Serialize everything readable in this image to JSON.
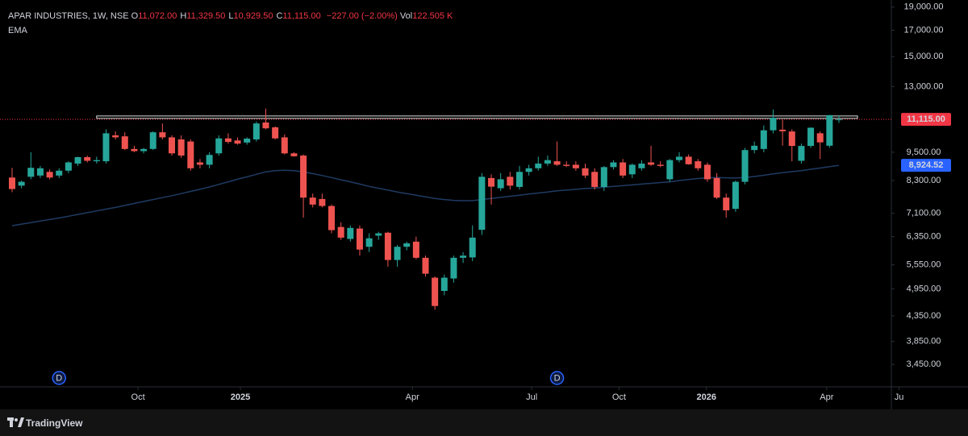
{
  "chart_data": {
    "type": "candlestick",
    "symbol": "APAR INDUSTRIES, 1W, NSE",
    "ohlc_legend": [
      {
        "key": "O",
        "value": "11,072.00"
      },
      {
        "key": "H",
        "value": "11,329.50"
      },
      {
        "key": "L",
        "value": "10,929.50"
      },
      {
        "key": "C",
        "value": "11,115.00"
      }
    ],
    "change": "−227.00 (−2.00%)",
    "volume_key": "Vol",
    "volume": "122.505 K",
    "up_color": "#26a69a",
    "down_color": "#ef5350",
    "log": true,
    "ylim": [
      3100,
      19650
    ],
    "yticks": [
      {
        "value": 19000,
        "label": "19,000.00"
      },
      {
        "value": 17000,
        "label": "17,000.00"
      },
      {
        "value": 15000,
        "label": "15,000.00"
      },
      {
        "value": 13000,
        "label": "13,000.00"
      },
      {
        "value": 9500,
        "label": "9,500.00"
      },
      {
        "value": 8300,
        "label": "8,300.00"
      },
      {
        "value": 7100,
        "label": "7,100.00"
      },
      {
        "value": 6350,
        "label": "6,350.00"
      },
      {
        "value": 5550,
        "label": "5,550.00"
      },
      {
        "value": 4950,
        "label": "4,950.00"
      },
      {
        "value": 4350,
        "label": "4,350.00"
      },
      {
        "value": 3850,
        "label": "3,850.00"
      },
      {
        "value": 3450,
        "label": "3,450.00"
      }
    ],
    "xticks": [
      {
        "value": 13.4,
        "label": "Oct"
      },
      {
        "value": 24.3,
        "label": "2025"
      },
      {
        "value": 42.6,
        "label": "Apr"
      },
      {
        "value": 55.3,
        "label": "Jul"
      },
      {
        "value": 64.6,
        "label": "Oct"
      },
      {
        "value": 73.9,
        "label": "2026"
      },
      {
        "value": 86.7,
        "label": "Apr"
      },
      {
        "value": 94.4,
        "label": "Ju"
      }
    ],
    "ohlc": [
      [
        8420,
        8820,
        7850,
        7970
      ],
      [
        8100,
        8300,
        8000,
        8250
      ],
      [
        8450,
        9500,
        8350,
        8820
      ],
      [
        8500,
        8900,
        8400,
        8800
      ],
      [
        8650,
        8750,
        8350,
        8420
      ],
      [
        8500,
        8800,
        8400,
        8700
      ],
      [
        8700,
        9100,
        8600,
        9050
      ],
      [
        9000,
        9300,
        8900,
        9280
      ],
      [
        9280,
        9350,
        9050,
        9120
      ],
      [
        9100,
        9300,
        9000,
        9150
      ],
      [
        9100,
        10600,
        9000,
        10400
      ],
      [
        10300,
        10500,
        10100,
        10200
      ],
      [
        10250,
        10450,
        9600,
        9650
      ],
      [
        9650,
        9800,
        9500,
        9550
      ],
      [
        9550,
        9700,
        9450,
        9650
      ],
      [
        9650,
        10500,
        9600,
        10450
      ],
      [
        10450,
        10900,
        10100,
        10200
      ],
      [
        10200,
        10300,
        9350,
        9450
      ],
      [
        10100,
        10300,
        9250,
        9350
      ],
      [
        10000,
        10100,
        8700,
        8800
      ],
      [
        9050,
        9200,
        8800,
        8950
      ],
      [
        8950,
        9500,
        8800,
        9380
      ],
      [
        9450,
        10300,
        9350,
        10150
      ],
      [
        10150,
        10400,
        9900,
        9980
      ],
      [
        10050,
        10200,
        9850,
        9900
      ],
      [
        9950,
        10200,
        9850,
        10140
      ],
      [
        10100,
        11000,
        10000,
        10900
      ],
      [
        10950,
        11700,
        10600,
        10650
      ],
      [
        10700,
        10750,
        10100,
        10150
      ],
      [
        10200,
        10350,
        9400,
        9450
      ],
      [
        9450,
        9500,
        9300,
        9320
      ],
      [
        9350,
        9400,
        6950,
        7650
      ],
      [
        7650,
        7800,
        7300,
        7400
      ],
      [
        7600,
        7800,
        7300,
        7350
      ],
      [
        7350,
        7400,
        6450,
        6550
      ],
      [
        6650,
        6800,
        6250,
        6320
      ],
      [
        6280,
        6700,
        6200,
        6620
      ],
      [
        6600,
        6700,
        5800,
        5970
      ],
      [
        6050,
        6450,
        5900,
        6300
      ],
      [
        6380,
        6500,
        6250,
        6450
      ],
      [
        6470,
        6500,
        5500,
        5680
      ],
      [
        5680,
        6100,
        5500,
        6050
      ],
      [
        6050,
        6200,
        5950,
        6150
      ],
      [
        6200,
        6350,
        5700,
        5740
      ],
      [
        5740,
        5800,
        5250,
        5320
      ],
      [
        5220,
        5250,
        4480,
        4560
      ],
      [
        4900,
        5300,
        4800,
        5220
      ],
      [
        5200,
        5800,
        5100,
        5740
      ],
      [
        5740,
        5900,
        5600,
        5800
      ],
      [
        5750,
        6700,
        5650,
        6320
      ],
      [
        6560,
        8600,
        6400,
        8450
      ],
      [
        8400,
        8550,
        7400,
        8060
      ],
      [
        8000,
        8600,
        7900,
        8350
      ],
      [
        8450,
        8650,
        7950,
        8100
      ],
      [
        8050,
        8900,
        7950,
        8650
      ],
      [
        8650,
        8950,
        8500,
        8800
      ],
      [
        8800,
        9300,
        8700,
        9000
      ],
      [
        9000,
        9350,
        8900,
        9150
      ],
      [
        9100,
        10000,
        8900,
        8950
      ],
      [
        8950,
        9100,
        8850,
        8900
      ],
      [
        8950,
        9100,
        8700,
        8800
      ],
      [
        8800,
        9000,
        8400,
        8500
      ],
      [
        8650,
        8800,
        7950,
        8050
      ],
      [
        8050,
        8900,
        7900,
        8850
      ],
      [
        8850,
        9150,
        8750,
        9050
      ],
      [
        9050,
        9200,
        8400,
        8500
      ],
      [
        8550,
        9000,
        8400,
        8950
      ],
      [
        8800,
        9150,
        8700,
        9000
      ],
      [
        9050,
        9800,
        8900,
        8950
      ],
      [
        8950,
        9100,
        8850,
        8900
      ],
      [
        8350,
        9200,
        8250,
        9150
      ],
      [
        9150,
        9500,
        9050,
        9300
      ],
      [
        9300,
        9400,
        8950,
        8970
      ],
      [
        9100,
        9200,
        8700,
        8800
      ],
      [
        8950,
        9050,
        8250,
        8350
      ],
      [
        8400,
        8600,
        7600,
        7650
      ],
      [
        7650,
        7800,
        6950,
        7200
      ],
      [
        7250,
        8300,
        7150,
        8250
      ],
      [
        8250,
        9700,
        8150,
        9600
      ],
      [
        9600,
        10000,
        9450,
        9800
      ],
      [
        9650,
        10800,
        9500,
        10550
      ],
      [
        10550,
        11650,
        10400,
        11200
      ],
      [
        10580,
        11100,
        9800,
        10500
      ],
      [
        10490,
        10600,
        9100,
        9790
      ],
      [
        9120,
        9900,
        9000,
        9790
      ],
      [
        9790,
        10700,
        9700,
        10680
      ],
      [
        10400,
        10500,
        9200,
        9960
      ],
      [
        9800,
        11350,
        9700,
        11342
      ],
      [
        11072,
        11329.5,
        10929.5,
        11115
      ]
    ],
    "ema": {
      "name": "EMA",
      "color": "#1f3b63",
      "label_color": "#2962ff",
      "values": [
        6690,
        6740,
        6790,
        6840,
        6890,
        6940,
        7000,
        7060,
        7120,
        7180,
        7240,
        7300,
        7370,
        7440,
        7510,
        7580,
        7650,
        7720,
        7800,
        7880,
        7960,
        8050,
        8150,
        8250,
        8350,
        8450,
        8550,
        8650,
        8700,
        8720,
        8700,
        8650,
        8580,
        8500,
        8420,
        8330,
        8250,
        8160,
        8070,
        8000,
        7930,
        7860,
        7800,
        7740,
        7680,
        7620,
        7580,
        7550,
        7540,
        7540,
        7580,
        7620,
        7660,
        7700,
        7740,
        7780,
        7820,
        7860,
        7900,
        7930,
        7960,
        7990,
        8010,
        8040,
        8070,
        8100,
        8130,
        8160,
        8190,
        8220,
        8250,
        8300,
        8340,
        8380,
        8410,
        8420,
        8410,
        8400,
        8420,
        8460,
        8510,
        8570,
        8620,
        8660,
        8700,
        8760,
        8810,
        8870,
        8924.52
      ],
      "last_label": "8,924.52"
    },
    "last_price": {
      "value": 11115,
      "label": "11,115.00",
      "color": "#f23645"
    },
    "resistance": {
      "value": 11210,
      "from_candle": 9
    },
    "events": [
      {
        "candle": 5,
        "label": "D"
      },
      {
        "candle": 58,
        "label": "D"
      }
    ],
    "brand": "TradingView"
  }
}
